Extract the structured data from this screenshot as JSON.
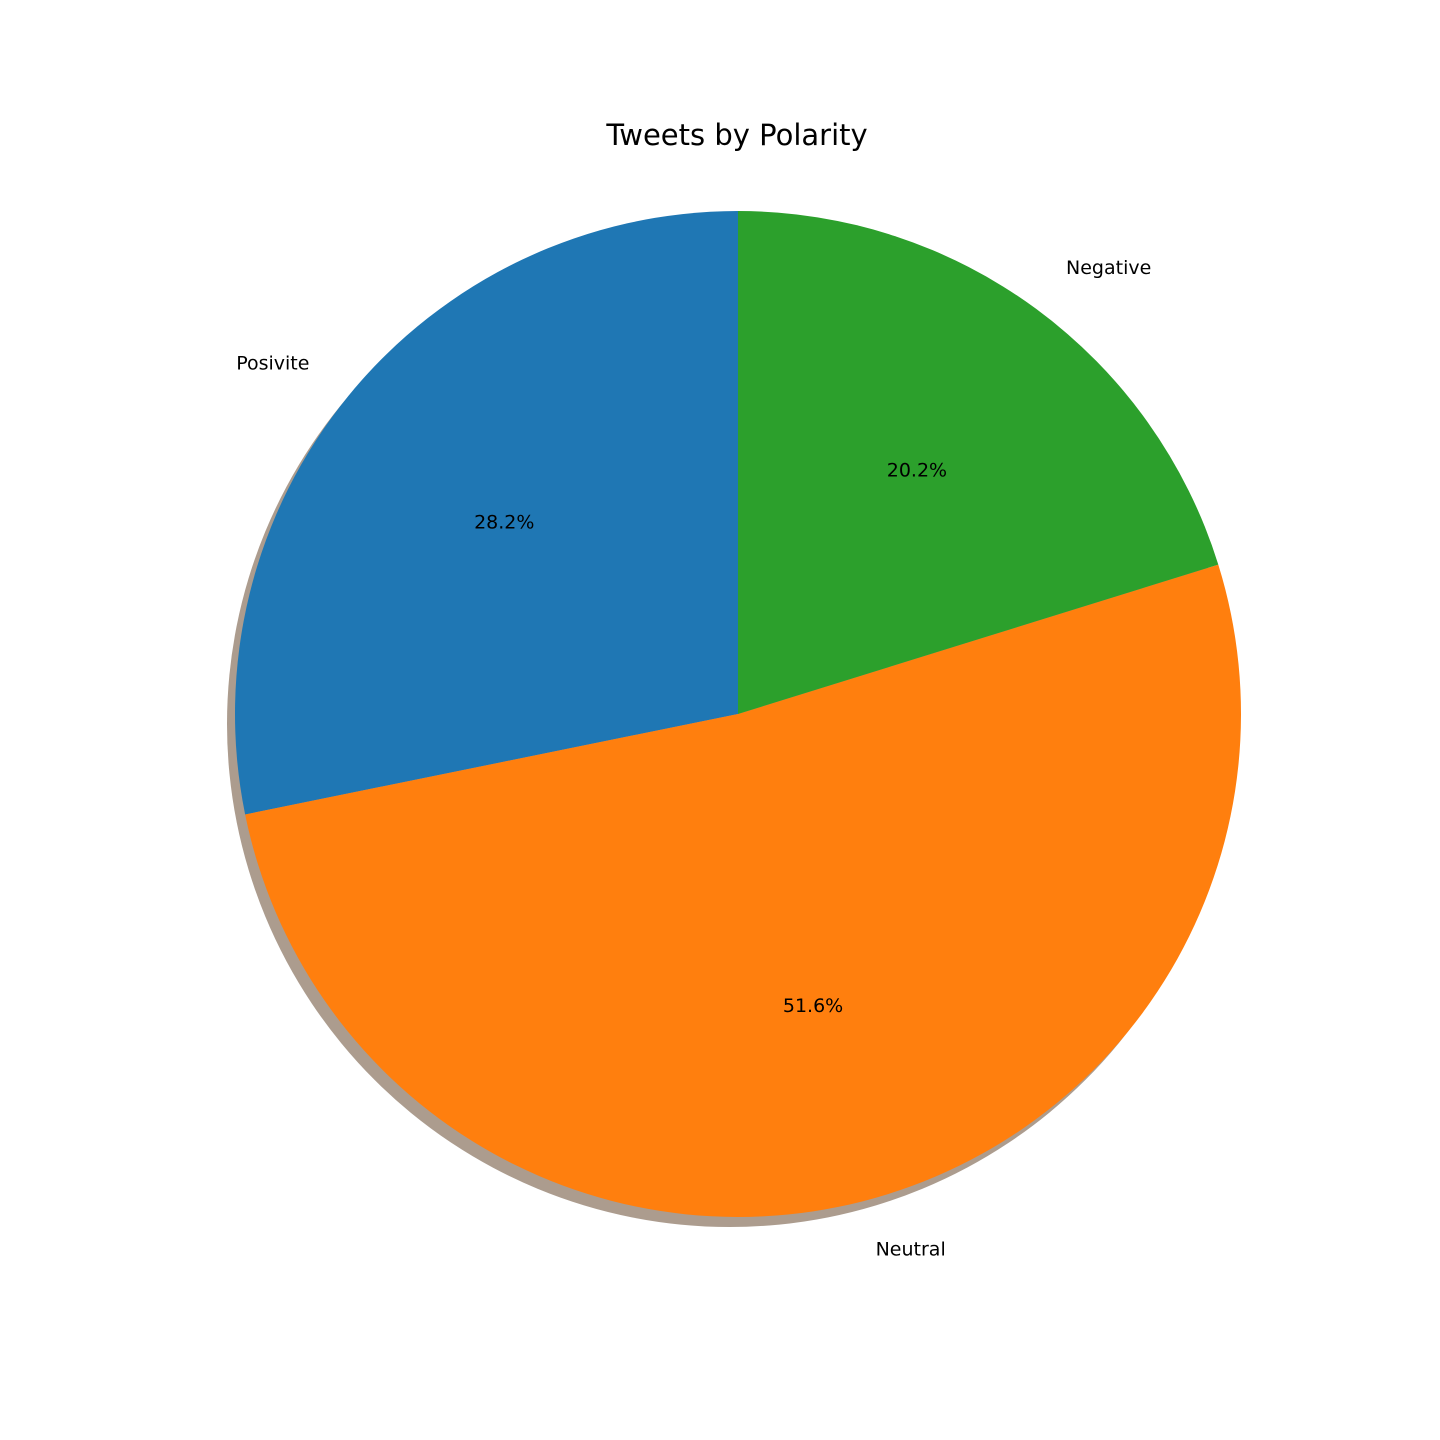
{
  "chart_data": {
    "type": "pie",
    "title": "Tweets by Polarity",
    "labels": [
      "Posivite",
      "Neutral",
      "Negative"
    ],
    "values": [
      28.2,
      51.6,
      20.2
    ],
    "percent_labels": [
      "28.2%",
      "51.6%",
      "20.2%"
    ],
    "colors": [
      "#1f77b4",
      "#ff7f0e",
      "#2ca02c"
    ],
    "shadow_color": "#a89788",
    "start_angle_deg": 90,
    "direction": "counterclockwise",
    "shadow": true
  }
}
